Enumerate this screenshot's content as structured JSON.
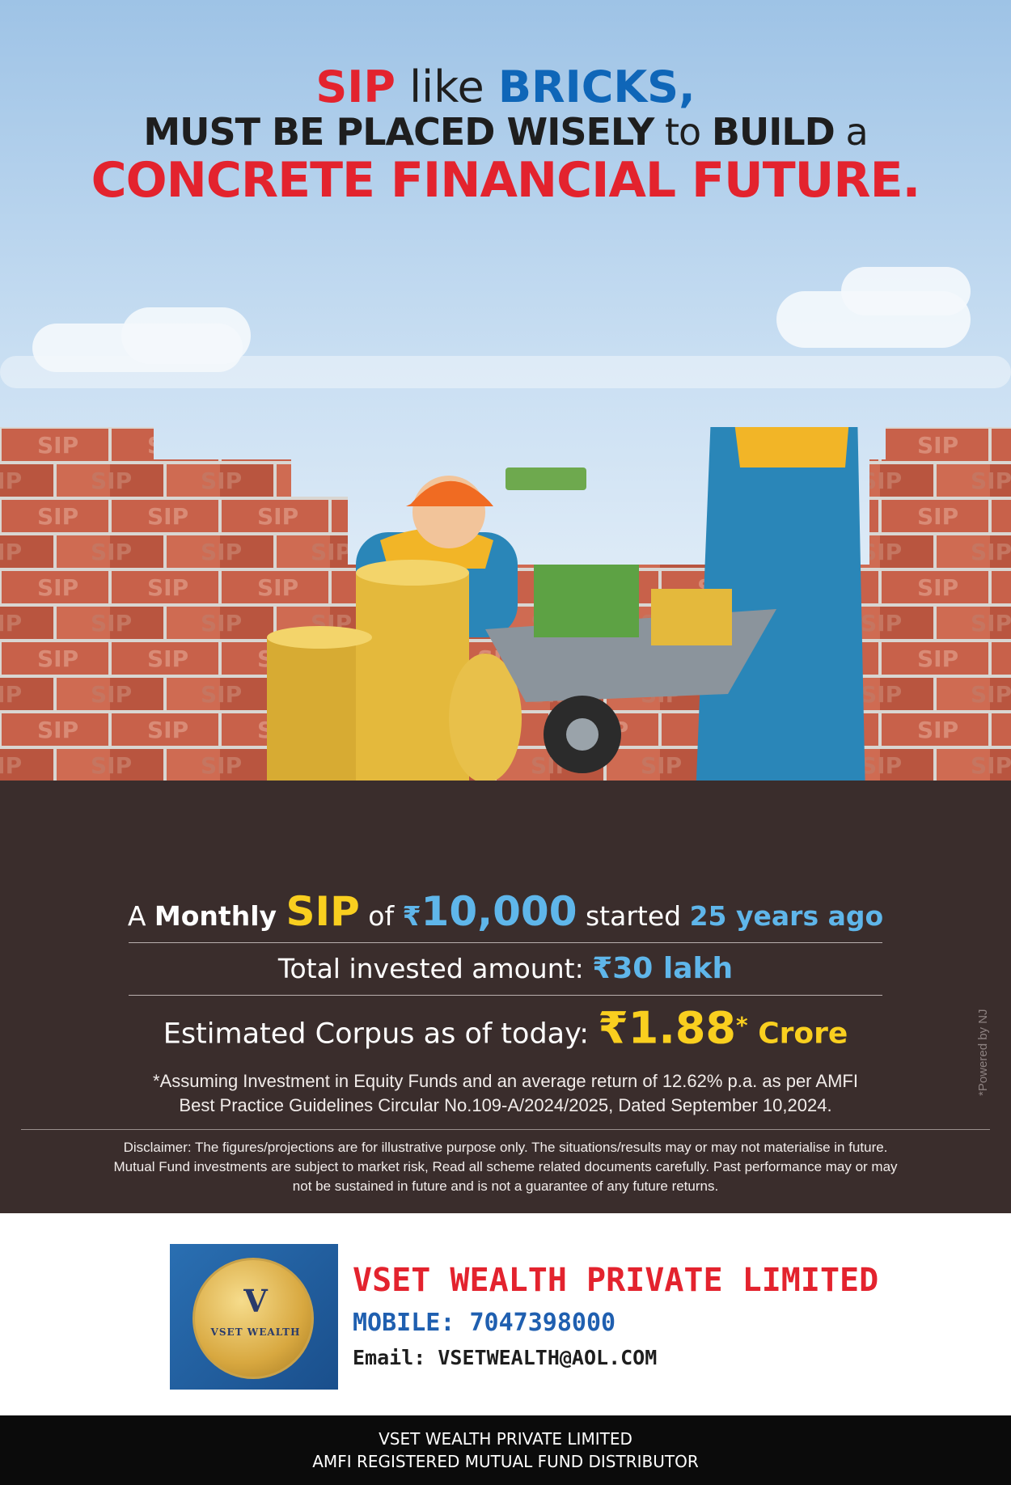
{
  "headline": {
    "l1_a": "SIP",
    "l1_b": " like ",
    "l1_c": "BRICKS,",
    "l2_a": "MUST BE PLACED WISELY",
    "l2_b": " to ",
    "l2_c": "BUILD",
    "l2_d": " a",
    "l3": "CONCRETE FINANCIAL FUTURE."
  },
  "wall": {
    "brick_text": "SIP"
  },
  "stats": {
    "r1_a": "A ",
    "r1_b": "Monthly ",
    "r1_c": "SIP",
    "r1_d": " of ",
    "r1_e": "₹",
    "r1_f": "10,000",
    "r1_g": " started ",
    "r1_h": "25 years ago",
    "r2_a": "Total invested amount: ",
    "r2_b": "₹30 lakh",
    "r3_a": "Estimated Corpus as of today: ",
    "r3_b": "₹1.88",
    "r3_c": "*",
    "r3_d": " Crore",
    "assume_1": "*Assuming Investment in Equity Funds and an average return of 12.62% p.a. as per AMFI",
    "assume_2": "Best Practice  Guidelines Circular No.109-A/2024/2025, Dated September 10,2024.",
    "disclaimer_1": "Disclaimer: The figures/projections are for illustrative purpose only. The situations/results may or may not materialise in future.",
    "disclaimer_2": "Mutual Fund investments are subject to market risk, Read all scheme related documents carefully. Past performance may or may",
    "disclaimer_3": "not be sustained in future and is not a guarantee of any future returns.",
    "powered": "*Powered by NJ"
  },
  "brand": {
    "logo_letter": "V",
    "logo_name": "VSET WEALTH",
    "company": "VSET WEALTH PRIVATE LIMITED",
    "mobile": "MOBILE: 7047398000",
    "email": "Email: VSETWEALTH@AOL.COM"
  },
  "footer": {
    "line1": "VSET WEALTH PRIVATE LIMITED",
    "line2": "AMFI REGISTERED MUTUAL FUND DISTRIBUTOR"
  },
  "colors": {
    "red": "#e3232e",
    "blue": "#0f66b8",
    "yellow": "#f9cf1f",
    "light_blue": "#5fb6ea",
    "dark_band": "#3a2d2c"
  }
}
